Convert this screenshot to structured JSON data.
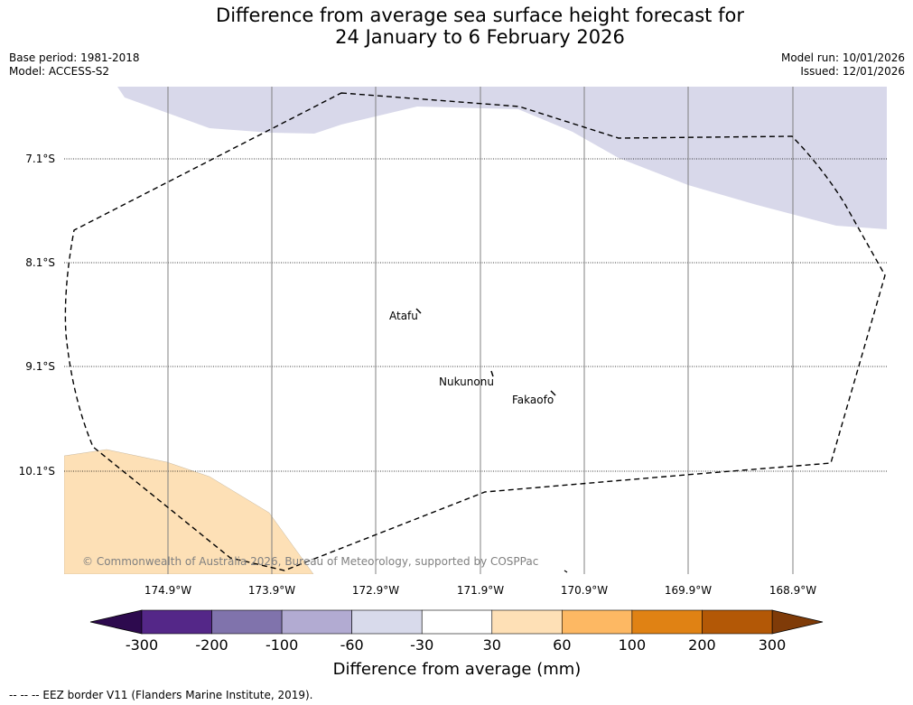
{
  "header": {
    "title_line1": "Difference from average sea surface height forecast for",
    "title_line2": "24 January to 6 February 2026",
    "base_period": "Base period: 1981-2018",
    "model": "Model: ACCESS-S2",
    "model_run": "Model run: 10/01/2026",
    "issued": "Issued: 12/01/2026"
  },
  "map": {
    "lat_labels": [
      "7.1°S",
      "8.1°S",
      "9.1°S",
      "10.1°S"
    ],
    "lon_labels": [
      "174.9°W",
      "173.9°W",
      "172.9°W",
      "171.9°W",
      "170.9°W",
      "169.9°W",
      "168.9°W"
    ],
    "places": [
      "Atafu",
      "Nukunonu",
      "Fakaofo"
    ],
    "copyright": "© Commonwealth of Australia 2026, Bureau of Meteorology, supported by COSPPac",
    "colors": {
      "anomaly_negative_light": "#d8d8ea",
      "anomaly_positive_light": "#fde0b6",
      "eez_border": "#000000"
    }
  },
  "colorbar": {
    "tick_labels": [
      "-300",
      "-200",
      "-100",
      "-60",
      "-30",
      "30",
      "60",
      "100",
      "200",
      "300"
    ],
    "label": "Difference from average (mm)",
    "colors": [
      "#2d0a4e",
      "#542788",
      "#8073ac",
      "#b2abd2",
      "#d8daeb",
      "#ffffff",
      "#fee0b6",
      "#fdb863",
      "#e08214",
      "#b35806",
      "#7f3b08"
    ]
  },
  "footer": {
    "legend": "--  --  -- EEZ border V11 (Flanders Marine Institute, 2019)."
  }
}
